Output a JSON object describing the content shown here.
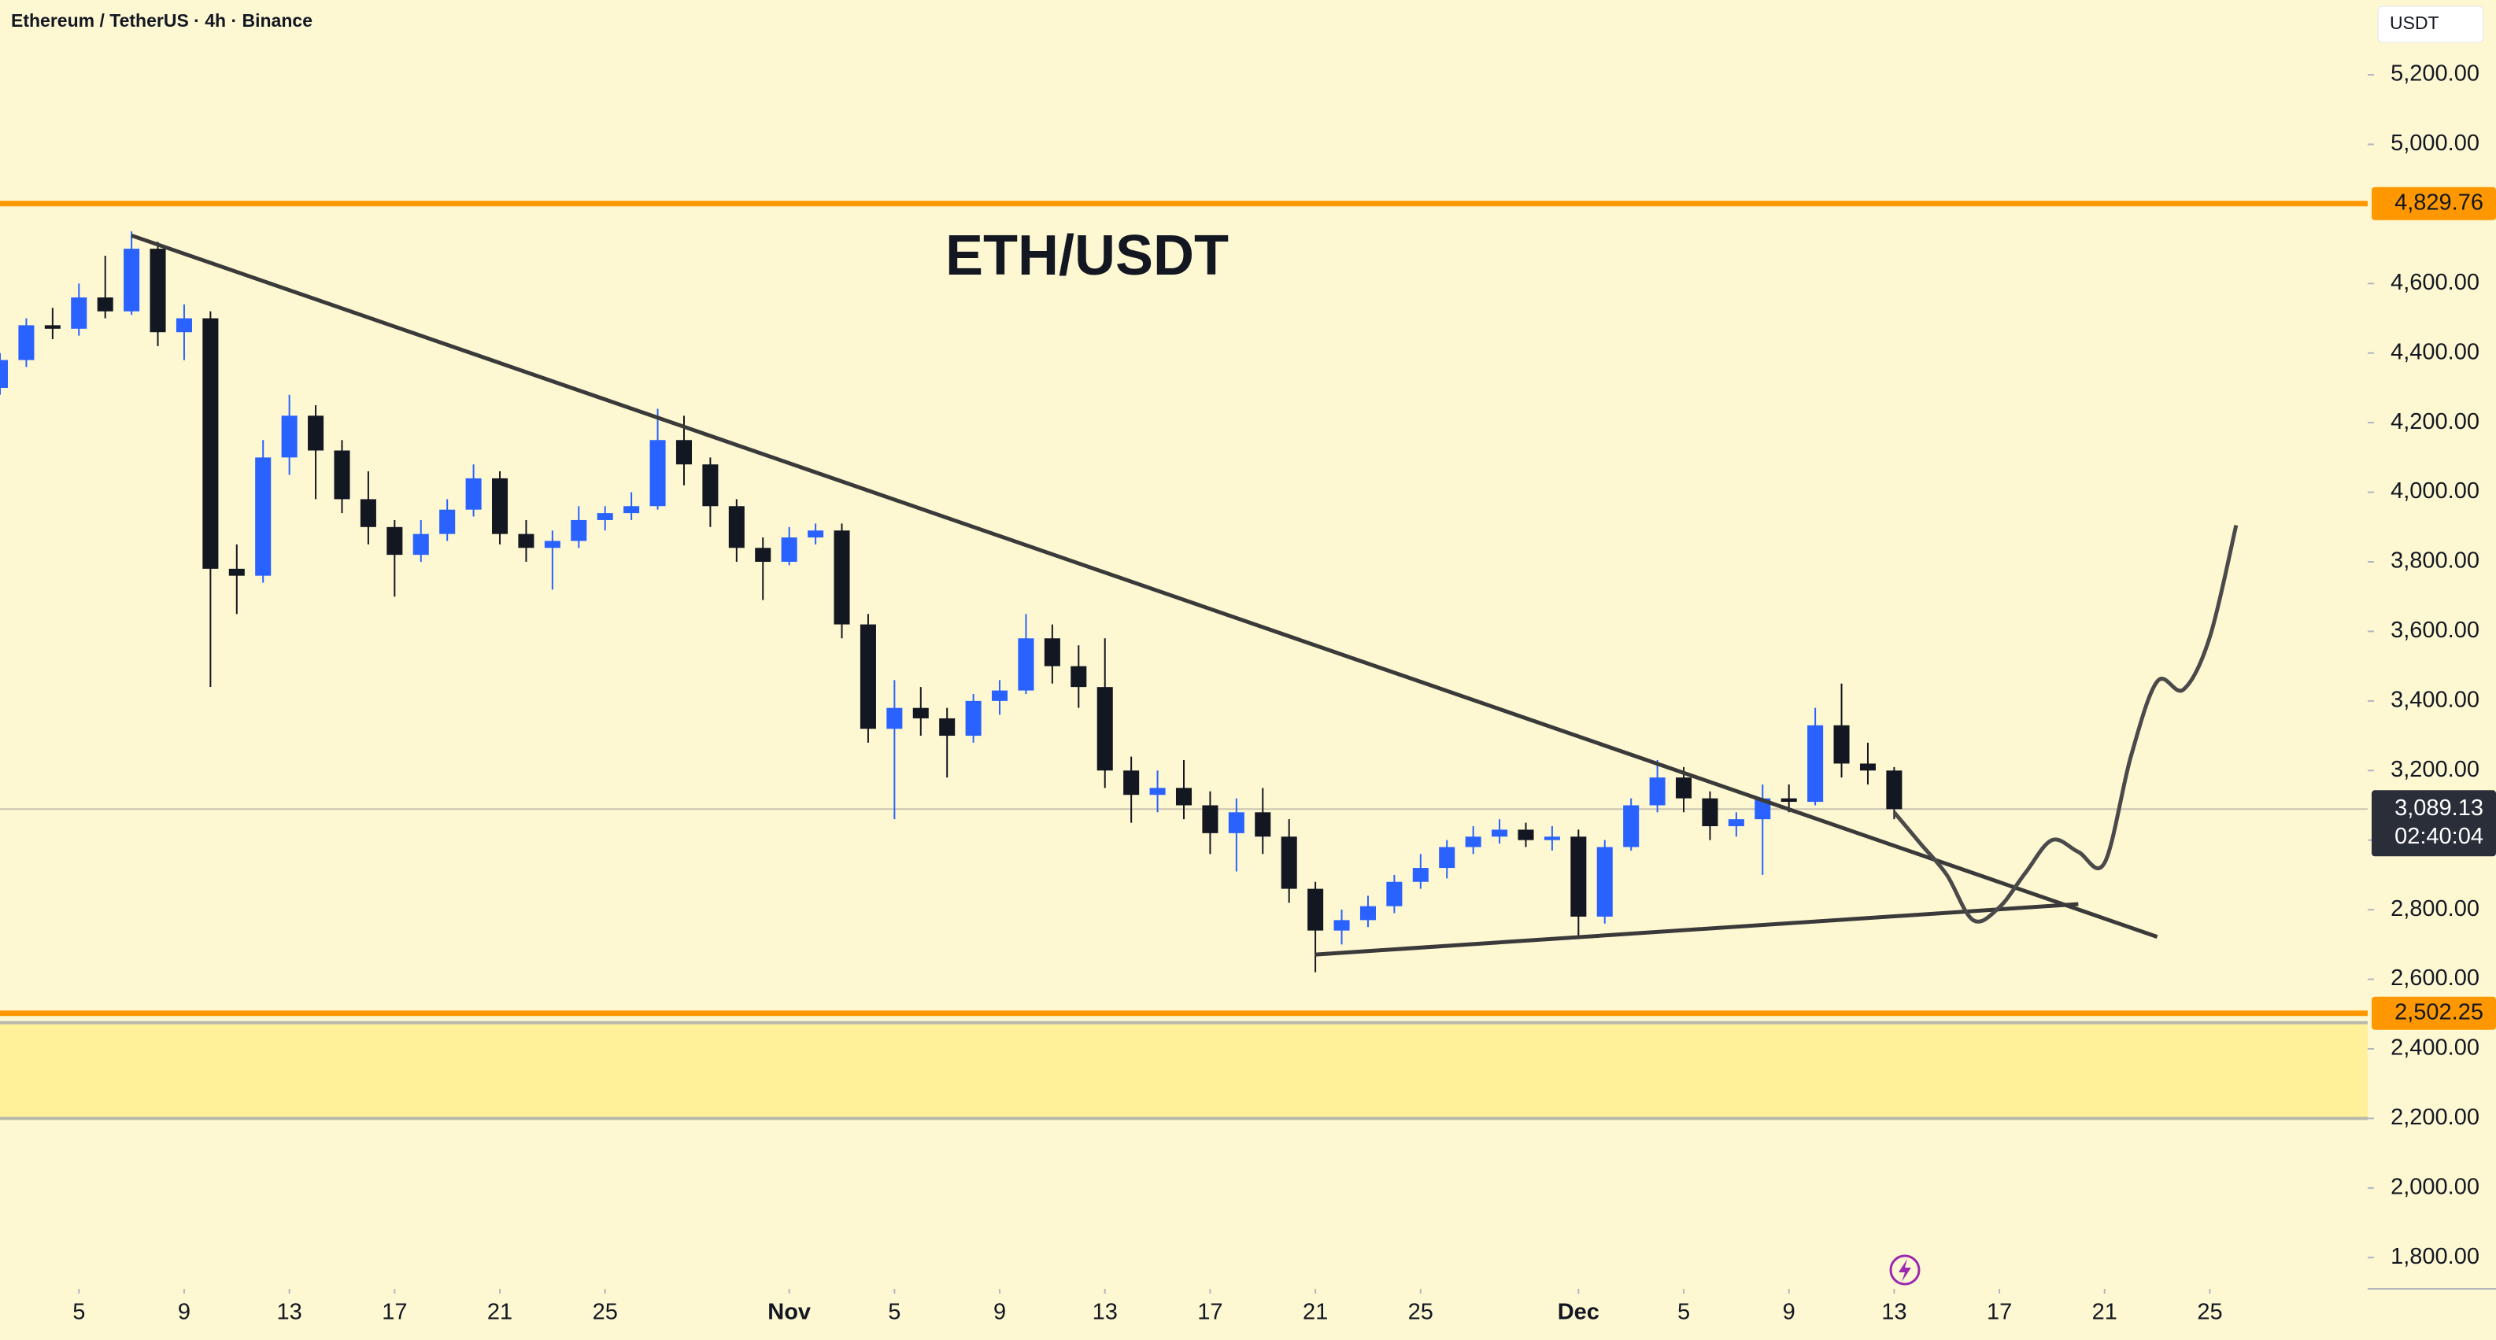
{
  "chart_data": {
    "type": "candlestick",
    "header": "Ethereum / TetherUS · 4h · Binance",
    "title": "ETH/USDT",
    "currency": "USDT",
    "up_color": "#2962ff",
    "down_color": "#131722",
    "x": [
      "Oct 2",
      "Oct 3",
      "Oct 4",
      "Oct 5",
      "Oct 6",
      "Oct 7",
      "Oct 8",
      "Oct 9",
      "Oct 10",
      "Oct 11",
      "Oct 12",
      "Oct 13",
      "Oct 14",
      "Oct 15",
      "Oct 16",
      "Oct 17",
      "Oct 18",
      "Oct 19",
      "Oct 20",
      "Oct 21",
      "Oct 22",
      "Oct 23",
      "Oct 24",
      "Oct 25",
      "Oct 26",
      "Oct 27",
      "Oct 28",
      "Oct 29",
      "Oct 30",
      "Oct 31",
      "Nov 1",
      "Nov 2",
      "Nov 3",
      "Nov 4",
      "Nov 5",
      "Nov 6",
      "Nov 7",
      "Nov 8",
      "Nov 9",
      "Nov 10",
      "Nov 11",
      "Nov 12",
      "Nov 13",
      "Nov 14",
      "Nov 15",
      "Nov 16",
      "Nov 17",
      "Nov 18",
      "Nov 19",
      "Nov 20",
      "Nov 21",
      "Nov 22",
      "Nov 23",
      "Nov 24",
      "Nov 25",
      "Nov 26",
      "Nov 27",
      "Nov 28",
      "Nov 29",
      "Nov 30",
      "Dec 1",
      "Dec 2",
      "Dec 3",
      "Dec 4",
      "Dec 5",
      "Dec 6",
      "Dec 7",
      "Dec 8",
      "Dec 9",
      "Dec 10",
      "Dec 11",
      "Dec 12",
      "Dec 13"
    ],
    "open": [
      4300,
      4380,
      4480,
      4470,
      4560,
      4520,
      4700,
      4460,
      4500,
      3780,
      3760,
      4100,
      4220,
      4120,
      3980,
      3900,
      3820,
      3880,
      3950,
      4040,
      3880,
      3840,
      3860,
      3920,
      3940,
      3960,
      4150,
      4080,
      3960,
      3840,
      3800,
      3870,
      3890,
      3620,
      3320,
      3380,
      3350,
      3300,
      3400,
      3430,
      3580,
      3500,
      3440,
      3200,
      3130,
      3150,
      3100,
      3020,
      3080,
      3010,
      2860,
      2740,
      2770,
      2810,
      2880,
      2920,
      2980,
      3010,
      3030,
      3000,
      3010,
      2780,
      2980,
      3100,
      3180,
      3120,
      3040,
      3060,
      3120,
      3110,
      3330,
      3220,
      3200
    ],
    "high": [
      4400,
      4500,
      4530,
      4600,
      4680,
      4750,
      4720,
      4540,
      4520,
      3850,
      4150,
      4280,
      4250,
      4150,
      4060,
      3920,
      3920,
      3980,
      4080,
      4060,
      3920,
      3890,
      3960,
      3960,
      4000,
      4240,
      4220,
      4100,
      3980,
      3870,
      3900,
      3910,
      3910,
      3650,
      3460,
      3440,
      3380,
      3420,
      3460,
      3650,
      3620,
      3560,
      3580,
      3240,
      3200,
      3230,
      3140,
      3120,
      3150,
      3060,
      2880,
      2800,
      2840,
      2900,
      2960,
      3000,
      3040,
      3060,
      3050,
      3040,
      3030,
      3000,
      3120,
      3230,
      3210,
      3140,
      3080,
      3160,
      3160,
      3380,
      3450,
      3280,
      3210
    ],
    "low": [
      4280,
      4360,
      4440,
      4450,
      4500,
      4510,
      4420,
      4380,
      3440,
      3650,
      3740,
      4050,
      3980,
      3940,
      3850,
      3700,
      3800,
      3860,
      3930,
      3850,
      3800,
      3720,
      3840,
      3890,
      3920,
      3950,
      4020,
      3900,
      3800,
      3690,
      3790,
      3850,
      3580,
      3280,
      3060,
      3300,
      3180,
      3280,
      3360,
      3420,
      3450,
      3380,
      3150,
      3050,
      3080,
      3060,
      2960,
      2910,
      2960,
      2820,
      2620,
      2700,
      2750,
      2790,
      2860,
      2890,
      2960,
      2990,
      2980,
      2970,
      2720,
      2760,
      2970,
      3080,
      3080,
      3000,
      3010,
      2900,
      3080,
      3100,
      3180,
      3160,
      3060
    ],
    "close": [
      4380,
      4480,
      4470,
      4560,
      4520,
      4700,
      4460,
      4500,
      3780,
      3760,
      4100,
      4220,
      4120,
      3980,
      3900,
      3820,
      3880,
      3950,
      4040,
      3880,
      3840,
      3860,
      3920,
      3940,
      3960,
      4150,
      4080,
      3960,
      3840,
      3800,
      3870,
      3890,
      3620,
      3320,
      3380,
      3350,
      3300,
      3400,
      3430,
      3580,
      3500,
      3440,
      3200,
      3130,
      3150,
      3100,
      3020,
      3080,
      3010,
      2860,
      2740,
      2770,
      2810,
      2880,
      2920,
      2980,
      3010,
      3030,
      3000,
      3010,
      2780,
      2980,
      3100,
      3180,
      3120,
      3040,
      3060,
      3120,
      3110,
      3330,
      3220,
      3200,
      3089.13
    ],
    "xlim": [
      "Oct 2",
      "Dec 31"
    ],
    "xticks": [
      {
        "value": "Oct 5",
        "label": "5"
      },
      {
        "value": "Oct 9",
        "label": "9"
      },
      {
        "value": "Oct 13",
        "label": "13"
      },
      {
        "value": "Oct 17",
        "label": "17"
      },
      {
        "value": "Oct 21",
        "label": "21"
      },
      {
        "value": "Oct 25",
        "label": "25"
      },
      {
        "value": "Nov 1",
        "label": "Nov"
      },
      {
        "value": "Nov 5",
        "label": "5"
      },
      {
        "value": "Nov 9",
        "label": "9"
      },
      {
        "value": "Nov 13",
        "label": "13"
      },
      {
        "value": "Nov 17",
        "label": "17"
      },
      {
        "value": "Nov 21",
        "label": "21"
      },
      {
        "value": "Nov 25",
        "label": "25"
      },
      {
        "value": "Dec 1",
        "label": "Dec"
      },
      {
        "value": "Dec 5",
        "label": "5"
      },
      {
        "value": "Dec 9",
        "label": "9"
      },
      {
        "value": "Dec 13",
        "label": "13"
      },
      {
        "value": "Dec 17",
        "label": "17"
      },
      {
        "value": "Dec 21",
        "label": "21"
      },
      {
        "value": "Dec 25",
        "label": "25"
      }
    ],
    "ylim": [
      1710,
      5415
    ],
    "yticks": [
      {
        "value": 1800,
        "label": "1,800.00"
      },
      {
        "value": 2000,
        "label": "2,000.00"
      },
      {
        "value": 2200,
        "label": "2,200.00"
      },
      {
        "value": 2400,
        "label": "2,400.00"
      },
      {
        "value": 2600,
        "label": "2,600.00"
      },
      {
        "value": 2800,
        "label": "2,800.00"
      },
      {
        "value": 3000,
        "label": "3,000.00"
      },
      {
        "value": 3200,
        "label": "3,200.00"
      },
      {
        "value": 3400,
        "label": "3,400.00"
      },
      {
        "value": 3600,
        "label": "3,600.00"
      },
      {
        "value": 3800,
        "label": "3,800.00"
      },
      {
        "value": 4000,
        "label": "4,000.00"
      },
      {
        "value": 4200,
        "label": "4,200.00"
      },
      {
        "value": 4400,
        "label": "4,400.00"
      },
      {
        "value": 4600,
        "label": "4,600.00"
      },
      {
        "value": 5000,
        "label": "5,000.00"
      },
      {
        "value": 5200,
        "label": "5,200.00"
      }
    ],
    "levels": [
      {
        "value": 4829.76,
        "label": "4,829.76",
        "color": "#ff9800"
      },
      {
        "value": 2502.25,
        "label": "2,502.25",
        "color": "#ff9800"
      }
    ],
    "zone": {
      "from": 2200,
      "to": 2475,
      "color": "#fff09a"
    },
    "current_price": {
      "value": 3089.13,
      "label": "3,089.13",
      "countdown": "02:40:04"
    },
    "trendlines": [
      {
        "x": [
          "Oct 7",
          "Dec 23"
        ],
        "y": [
          4738,
          2722
        ]
      },
      {
        "x": [
          "Nov 21",
          "Dec 20"
        ],
        "y": [
          2671,
          2816
        ]
      }
    ],
    "projection": {
      "x": [
        "Dec 13",
        "Dec 14",
        "Dec 15",
        "Dec 16",
        "Dec 17",
        "Dec 18",
        "Dec 19",
        "Dec 20",
        "Dec 21",
        "Dec 22",
        "Dec 23",
        "Dec 24",
        "Dec 25",
        "Dec 26"
      ],
      "y": [
        3080,
        2990,
        2900,
        2770,
        2807,
        2907,
        3000,
        2966,
        2935,
        3241,
        3456,
        3433,
        3584,
        3905
      ]
    }
  }
}
